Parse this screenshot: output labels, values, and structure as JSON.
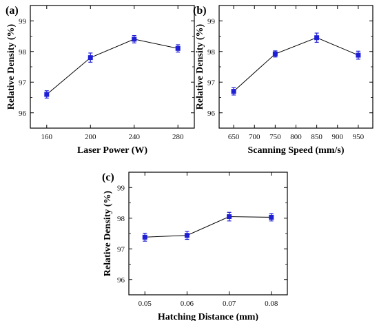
{
  "chart_data": [
    {
      "type": "line",
      "panel_label": "(a)",
      "x": [
        160,
        200,
        240,
        280
      ],
      "y": [
        96.6,
        97.8,
        98.4,
        98.1
      ],
      "yerr": [
        0.12,
        0.15,
        0.12,
        0.12
      ],
      "xlabel": "Laser Power (W)",
      "ylabel": "Relative Density (%)",
      "xlim": [
        145,
        295
      ],
      "ylim": [
        95.5,
        99.5
      ],
      "xticks": [
        160,
        200,
        240,
        280
      ],
      "xtick_labels": [
        "160",
        "200",
        "240",
        "280"
      ],
      "yticks": [
        96,
        97,
        98,
        99
      ],
      "ytick_labels": [
        "96",
        "97",
        "98",
        "99"
      ],
      "grid": false,
      "marker": "square",
      "color": "#1f1fd6"
    },
    {
      "type": "line",
      "panel_label": "(b)",
      "x": [
        650,
        750,
        850,
        950
      ],
      "y": [
        96.7,
        97.92,
        98.45,
        97.88
      ],
      "yerr": [
        0.12,
        0.1,
        0.15,
        0.13
      ],
      "xlabel": "Scanning Speed (mm/s)",
      "ylabel": "Relative Density (%)",
      "xlim": [
        615,
        985
      ],
      "ylim": [
        95.5,
        99.5
      ],
      "xticks": [
        650,
        700,
        750,
        800,
        850,
        900,
        950
      ],
      "xtick_labels": [
        "650",
        "700",
        "750",
        "800",
        "850",
        "900",
        "950"
      ],
      "yticks": [
        96,
        97,
        98,
        99
      ],
      "ytick_labels": [
        "96",
        "97",
        "98",
        "99"
      ],
      "grid": false,
      "marker": "square",
      "color": "#1f1fd6"
    },
    {
      "type": "line",
      "panel_label": "(c)",
      "x": [
        0.05,
        0.06,
        0.07,
        0.08
      ],
      "y": [
        97.38,
        97.44,
        98.05,
        98.03
      ],
      "yerr": [
        0.13,
        0.13,
        0.14,
        0.12
      ],
      "xlabel": "Hatching Distance (mm)",
      "ylabel": "Relative Density (%)",
      "xlim": [
        0.0462,
        0.0838
      ],
      "ylim": [
        95.5,
        99.5
      ],
      "xticks": [
        0.05,
        0.06,
        0.07,
        0.08
      ],
      "xtick_labels": [
        "0.05",
        "0.06",
        "0.07",
        "0.08"
      ],
      "yticks": [
        96,
        97,
        98,
        99
      ],
      "ytick_labels": [
        "96",
        "97",
        "98",
        "99"
      ],
      "grid": false,
      "marker": "square",
      "color": "#1f1fd6"
    }
  ]
}
